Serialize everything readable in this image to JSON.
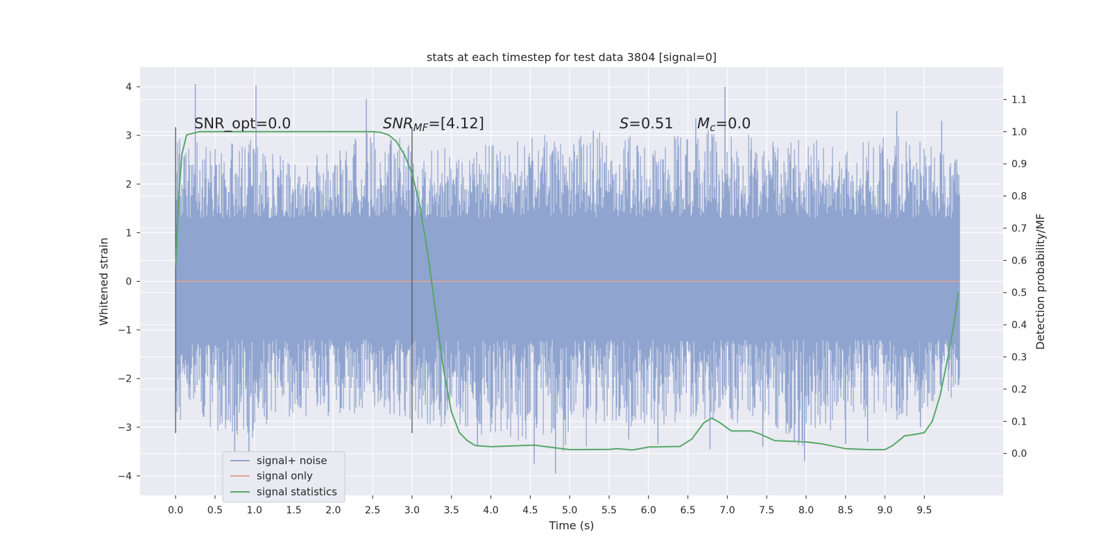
{
  "chart_data": {
    "type": "line",
    "title": "stats at each timestep for test data 3804 [signal=0]",
    "xlabel": "Time (s)",
    "ylabel": "Whitened strain",
    "y2label": "Detection probability/MF",
    "xlim": [
      -0.45,
      10.5
    ],
    "ylim": [
      -4.4,
      4.4
    ],
    "y2lim": [
      -0.13,
      1.2
    ],
    "x_ticks": [
      "0.0",
      "0.5",
      "1.0",
      "1.5",
      "2.0",
      "2.5",
      "3.0",
      "3.5",
      "4.0",
      "4.5",
      "5.0",
      "5.5",
      "6.0",
      "6.5",
      "7.0",
      "7.5",
      "8.0",
      "8.5",
      "9.0",
      "9.5"
    ],
    "y_ticks": [
      "4",
      "3",
      "2",
      "1",
      "0",
      "−1",
      "−2",
      "−3",
      "−4"
    ],
    "y2_ticks": [
      "1.1",
      "1.0",
      "0.9",
      "0.8",
      "0.7",
      "0.6",
      "0.5",
      "0.4",
      "0.3",
      "0.2",
      "0.1",
      "0.0"
    ],
    "grid": true,
    "legend_position": "lower-left",
    "annotations": {
      "snr_opt": "SNR_opt=0.0",
      "snr_mf_base": "SNR",
      "snr_mf_sub": "MF",
      "snr_mf_value": "=[4.12]",
      "s_sym": "S",
      "s_value": "=0.51",
      "mc_base": "M",
      "mc_sub": "c",
      "mc_value": "=0.0"
    },
    "vertical_lines": [
      0.0,
      3.0
    ],
    "series": [
      {
        "name": "signal+ noise",
        "color": "#8fa4cf",
        "axis": "left",
        "kind": "noise",
        "x_range": [
          0.0,
          9.95
        ],
        "envelope_upper": [
          [
            0.0,
            3.1
          ],
          [
            0.5,
            3.0
          ],
          [
            1.0,
            3.2
          ],
          [
            1.5,
            2.9
          ],
          [
            2.0,
            2.8
          ],
          [
            2.5,
            3.3
          ],
          [
            3.0,
            3.0
          ],
          [
            3.5,
            2.9
          ],
          [
            4.0,
            3.0
          ],
          [
            4.5,
            3.2
          ],
          [
            5.0,
            3.1
          ],
          [
            5.5,
            3.3
          ],
          [
            6.0,
            3.0
          ],
          [
            6.5,
            3.2
          ],
          [
            7.0,
            3.4
          ],
          [
            7.5,
            3.0
          ],
          [
            8.0,
            3.1
          ],
          [
            8.5,
            2.9
          ],
          [
            9.0,
            3.2
          ],
          [
            9.5,
            3.0
          ],
          [
            9.95,
            2.6
          ]
        ],
        "envelope_lower": [
          [
            0.0,
            -3.0
          ],
          [
            0.5,
            -3.3
          ],
          [
            1.0,
            -3.4
          ],
          [
            1.5,
            -3.0
          ],
          [
            2.0,
            -2.9
          ],
          [
            2.5,
            -2.8
          ],
          [
            3.0,
            -3.1
          ],
          [
            3.5,
            -3.2
          ],
          [
            4.0,
            -3.4
          ],
          [
            4.5,
            -3.6
          ],
          [
            5.0,
            -3.9
          ],
          [
            5.5,
            -3.2
          ],
          [
            6.0,
            -3.1
          ],
          [
            6.5,
            -3.2
          ],
          [
            7.0,
            -3.0
          ],
          [
            7.5,
            -3.3
          ],
          [
            8.0,
            -3.7
          ],
          [
            8.5,
            -3.0
          ],
          [
            9.0,
            -3.1
          ],
          [
            9.5,
            -2.8
          ],
          [
            9.95,
            -2.5
          ]
        ],
        "core_band": [
          -1.2,
          1.3
        ],
        "spikes": [
          [
            0.25,
            4.05
          ],
          [
            0.75,
            -3.6
          ],
          [
            0.93,
            -3.55
          ],
          [
            1.02,
            4.02
          ],
          [
            2.42,
            3.75
          ],
          [
            3.83,
            -3.4
          ],
          [
            4.55,
            -3.75
          ],
          [
            4.82,
            -3.95
          ],
          [
            5.3,
            3.1
          ],
          [
            5.75,
            -3.25
          ],
          [
            6.12,
            -3.35
          ],
          [
            6.6,
            3.35
          ],
          [
            6.78,
            -3.45
          ],
          [
            6.97,
            4.0
          ],
          [
            7.45,
            -3.4
          ],
          [
            7.85,
            -3.3
          ],
          [
            7.98,
            -3.7
          ],
          [
            8.5,
            -3.35
          ],
          [
            8.78,
            -3.3
          ],
          [
            9.15,
            3.5
          ],
          [
            9.45,
            -3.0
          ],
          [
            9.72,
            3.3
          ]
        ]
      },
      {
        "name": "signal only",
        "color": "#e1a68c",
        "axis": "left",
        "kind": "line",
        "points": [
          [
            0.0,
            0.0
          ],
          [
            9.95,
            0.0
          ]
        ]
      },
      {
        "name": "signal statistics",
        "color": "#55a868",
        "axis": "right",
        "kind": "line",
        "points": [
          [
            0.0,
            0.58
          ],
          [
            0.04,
            0.8
          ],
          [
            0.08,
            0.93
          ],
          [
            0.14,
            0.99
          ],
          [
            0.3,
            1.0
          ],
          [
            1.0,
            1.0
          ],
          [
            2.0,
            1.0
          ],
          [
            2.5,
            1.0
          ],
          [
            2.6,
            0.998
          ],
          [
            2.7,
            0.99
          ],
          [
            2.8,
            0.97
          ],
          [
            2.9,
            0.93
          ],
          [
            3.0,
            0.87
          ],
          [
            3.1,
            0.77
          ],
          [
            3.2,
            0.62
          ],
          [
            3.3,
            0.44
          ],
          [
            3.4,
            0.26
          ],
          [
            3.5,
            0.13
          ],
          [
            3.6,
            0.065
          ],
          [
            3.7,
            0.04
          ],
          [
            3.8,
            0.025
          ],
          [
            4.0,
            0.021
          ],
          [
            4.3,
            0.024
          ],
          [
            4.55,
            0.026
          ],
          [
            4.8,
            0.018
          ],
          [
            5.0,
            0.012
          ],
          [
            5.5,
            0.013
          ],
          [
            5.6,
            0.015
          ],
          [
            5.8,
            0.011
          ],
          [
            6.0,
            0.02
          ],
          [
            6.4,
            0.022
          ],
          [
            6.55,
            0.045
          ],
          [
            6.7,
            0.095
          ],
          [
            6.8,
            0.11
          ],
          [
            6.9,
            0.097
          ],
          [
            7.05,
            0.07
          ],
          [
            7.3,
            0.07
          ],
          [
            7.4,
            0.062
          ],
          [
            7.6,
            0.04
          ],
          [
            8.0,
            0.036
          ],
          [
            8.2,
            0.03
          ],
          [
            8.5,
            0.015
          ],
          [
            8.8,
            0.012
          ],
          [
            9.0,
            0.012
          ],
          [
            9.1,
            0.025
          ],
          [
            9.25,
            0.055
          ],
          [
            9.4,
            0.06
          ],
          [
            9.5,
            0.065
          ],
          [
            9.6,
            0.1
          ],
          [
            9.7,
            0.18
          ],
          [
            9.8,
            0.3
          ],
          [
            9.88,
            0.41
          ],
          [
            9.93,
            0.5
          ]
        ]
      }
    ]
  }
}
